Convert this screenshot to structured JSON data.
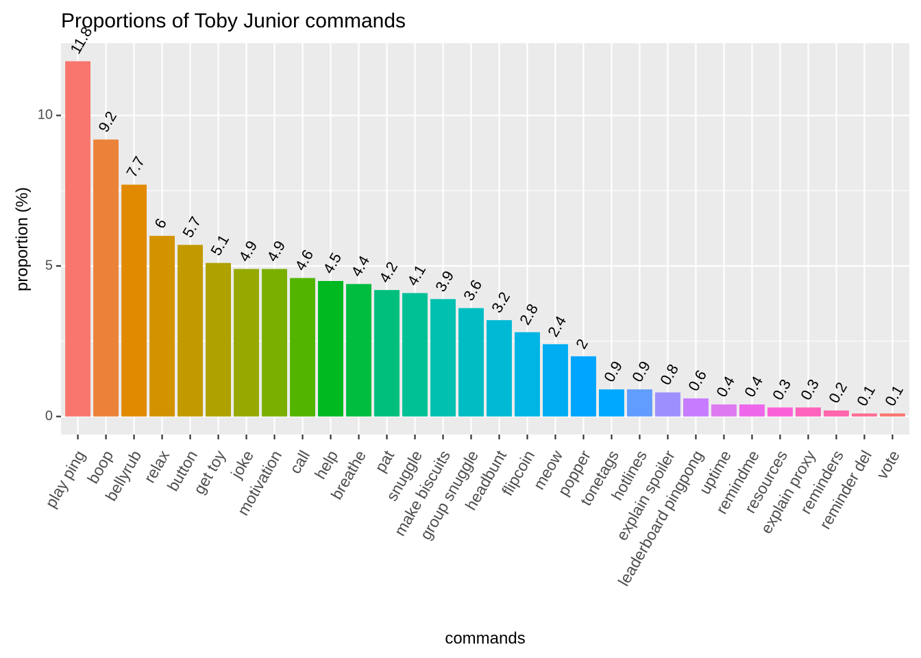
{
  "chart_data": {
    "type": "bar",
    "title": "Proportions of Toby Junior commands",
    "xlabel": "commands",
    "ylabel": "proportion (%)",
    "ylim": [
      -0.6,
      12.4
    ],
    "yticks": [
      0,
      5,
      10
    ],
    "grid": true,
    "legend": "none",
    "background": "#ebebeb",
    "categories": [
      "play ping",
      "boop",
      "bellyrub",
      "relax",
      "button",
      "get toy",
      "joke",
      "motivation",
      "call",
      "help",
      "breathe",
      "pat",
      "snuggle",
      "make biscuits",
      "group snuggle",
      "headbunt",
      "flipcoin",
      "meow",
      "popper",
      "tonetags",
      "hotlines",
      "explain spoiler",
      "leaderboard pingpong",
      "uptime",
      "remindme",
      "resources",
      "explain proxy",
      "reminders",
      "reminder del",
      "vote"
    ],
    "values": [
      11.8,
      9.2,
      7.7,
      6,
      5.7,
      5.1,
      4.9,
      4.9,
      4.6,
      4.5,
      4.4,
      4.2,
      4.1,
      3.9,
      3.6,
      3.2,
      2.8,
      2.4,
      2,
      0.9,
      0.9,
      0.8,
      0.6,
      0.4,
      0.4,
      0.3,
      0.3,
      0.2,
      0.1,
      0.1
    ],
    "colors": [
      "#F8766D",
      "#EC8239",
      "#E18A00",
      "#D39200",
      "#C29A00",
      "#AFA100",
      "#96A900",
      "#7AAF00",
      "#53B400",
      "#00B81F",
      "#00BC3F",
      "#00BF7D",
      "#00C096",
      "#00C0AF",
      "#00BDC3",
      "#00BAD5",
      "#00B5E4",
      "#00ADF3",
      "#00A5FF",
      "#00A9FF",
      "#619CFF",
      "#9E8FFF",
      "#C77CFF",
      "#DE7AF1",
      "#EF67EB",
      "#FB61D7",
      "#FF62BC",
      "#FF65AC",
      "#FF6C91",
      "#F8766D"
    ]
  }
}
